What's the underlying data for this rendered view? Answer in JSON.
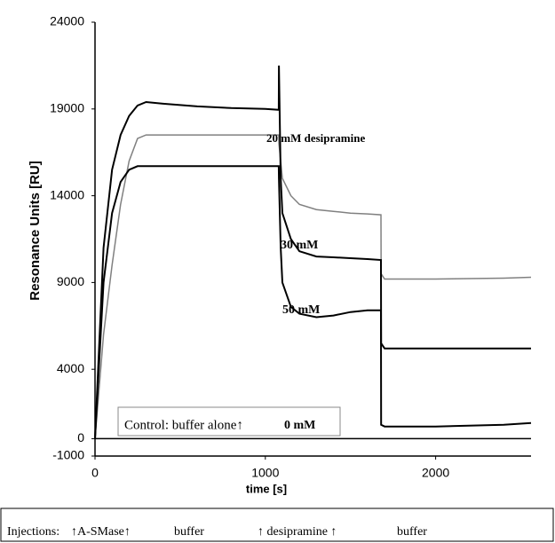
{
  "chart_data": {
    "type": "line",
    "y_label": "Resonance Units [RU]",
    "x_label": "time [s]",
    "xlim": [
      0,
      2560
    ],
    "xticks": [
      0,
      1000,
      2000
    ],
    "ylim": [
      -1000,
      24000
    ],
    "yticks": [
      24000,
      19000,
      14000,
      9000,
      4000,
      0,
      -1000
    ],
    "x": [
      0,
      50,
      100,
      150,
      200,
      250,
      300,
      400,
      600,
      800,
      1000,
      1079,
      1080,
      1090,
      1100,
      1150,
      1200,
      1300,
      1400,
      1500,
      1600,
      1679,
      1680,
      1700,
      2000,
      2400,
      2560
    ],
    "series": [
      {
        "name": "20 mM desipramine",
        "color": "#808080",
        "values": [
          0,
          6000,
          10000,
          13500,
          16000,
          17300,
          17500,
          17500,
          17500,
          17500,
          17500,
          17500,
          17000,
          16000,
          15000,
          14000,
          13500,
          13200,
          13100,
          13000,
          12950,
          12900,
          9500,
          9200,
          9200,
          9250,
          9300
        ]
      },
      {
        "name": "30 mM",
        "color": "#000000",
        "values": [
          0,
          11000,
          15500,
          17500,
          18600,
          19200,
          19400,
          19300,
          19150,
          19050,
          19000,
          18950,
          21500,
          15000,
          13000,
          11500,
          10800,
          10500,
          10450,
          10400,
          10350,
          10300,
          5500,
          5200,
          5200,
          5200,
          5200
        ]
      },
      {
        "name": "50 mM",
        "color": "#000000",
        "values": [
          0,
          9000,
          13000,
          14800,
          15500,
          15700,
          15700,
          15700,
          15700,
          15700,
          15700,
          15700,
          15000,
          11000,
          9000,
          7600,
          7200,
          7000,
          7100,
          7300,
          7400,
          7400,
          800,
          700,
          700,
          800,
          900
        ]
      },
      {
        "name": "0 mM",
        "color": "#000000",
        "values": [
          0,
          0,
          0,
          0,
          0,
          0,
          0,
          0,
          0,
          0,
          0,
          0,
          0,
          0,
          0,
          0,
          0,
          0,
          0,
          0,
          0,
          0,
          0,
          0,
          0,
          0,
          0
        ]
      }
    ],
    "control_label": "Control: buffer alone↑",
    "injections": [
      "Injections:",
      "↑A-SMase↑",
      "buffer",
      "↑ desipramine ↑",
      "buffer"
    ]
  }
}
